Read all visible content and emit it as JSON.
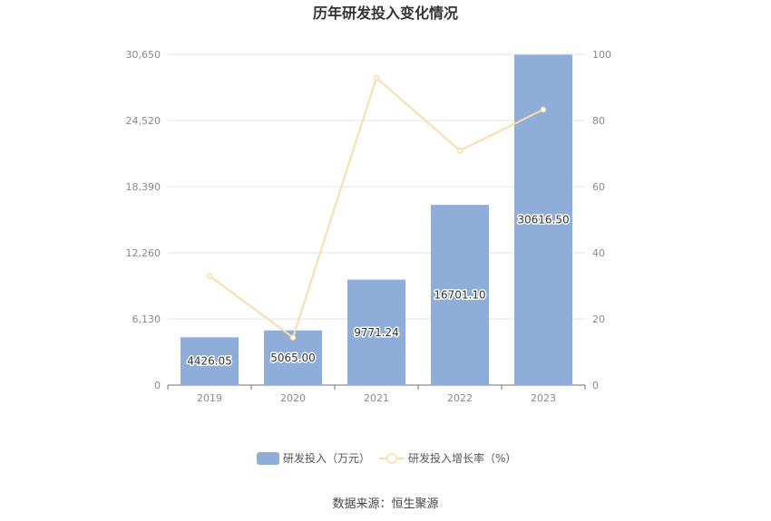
{
  "chart_data": {
    "type": "bar",
    "title": "历年研发投入变化情况",
    "categories": [
      "2019",
      "2020",
      "2021",
      "2022",
      "2023"
    ],
    "series": [
      {
        "name": "研发投入（万元）",
        "type": "bar",
        "axis": "left",
        "values": [
          4426.05,
          5065.0,
          9771.24,
          16701.1,
          30616.5
        ],
        "labels": [
          "4426.05",
          "5065.00",
          "9771.24",
          "16701.10",
          "30616.50"
        ],
        "color": "#8eadd9"
      },
      {
        "name": "研发投入增长率（%）",
        "type": "line",
        "axis": "right",
        "values": [
          33.0,
          14.4,
          92.9,
          70.9,
          83.3
        ],
        "color": "#fbdcaa"
      }
    ],
    "y_left": {
      "min": 0,
      "max": 30650,
      "ticks": [
        "0",
        "6,130",
        "12,260",
        "18,390",
        "24,520",
        "30,650"
      ]
    },
    "y_right": {
      "min": 0,
      "max": 100,
      "ticks": [
        "0",
        "20",
        "40",
        "60",
        "80",
        "100"
      ]
    },
    "grid": true,
    "legend": "bottom-center"
  },
  "source": "数据来源：恒生聚源"
}
